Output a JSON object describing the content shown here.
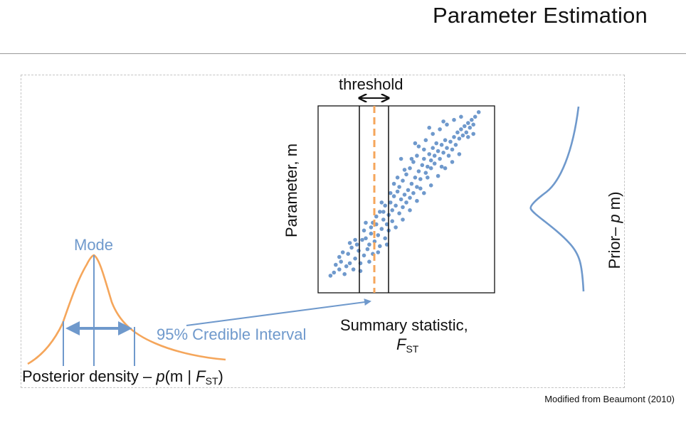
{
  "title": "Parameter Estimation",
  "labels": {
    "threshold": "threshold",
    "mode": "Mode",
    "credible_interval": "95% Credible Interval",
    "summary_line1": "Summary statistic,",
    "summary_f": "F",
    "summary_sub": "ST",
    "y_axis": "Parameter, m",
    "posterior_prefix": "Posterior density – ",
    "posterior_p": "p",
    "posterior_mid": "(m | ",
    "posterior_f": "F",
    "posterior_sub": "ST",
    "posterior_end": ")",
    "prior_prefix": "Prior– ",
    "prior_p": "p",
    "prior_end": " m)",
    "credit": "Modified from Beaumont (2010)"
  },
  "colors": {
    "points": "#6f99cc",
    "posterior_curve": "#f5a65b",
    "threshold_dash": "#f5a65b",
    "prior_curve": "#6f99cc",
    "arrows": "#6f99cc"
  },
  "chart_data": {
    "type": "scatter",
    "xlabel": "Summary statistic, FST",
    "ylabel": "Parameter, m",
    "points": [
      [
        0.07,
        0.11
      ],
      [
        0.09,
        0.13
      ],
      [
        0.12,
        0.15
      ],
      [
        0.1,
        0.18
      ],
      [
        0.15,
        0.12
      ],
      [
        0.13,
        0.2
      ],
      [
        0.16,
        0.17
      ],
      [
        0.12,
        0.23
      ],
      [
        0.18,
        0.19
      ],
      [
        0.2,
        0.15
      ],
      [
        0.17,
        0.25
      ],
      [
        0.21,
        0.22
      ],
      [
        0.19,
        0.29
      ],
      [
        0.23,
        0.27
      ],
      [
        0.24,
        0.19
      ],
      [
        0.26,
        0.24
      ],
      [
        0.22,
        0.31
      ],
      [
        0.25,
        0.34
      ],
      [
        0.28,
        0.28
      ],
      [
        0.27,
        0.35
      ],
      [
        0.29,
        0.31
      ],
      [
        0.3,
        0.38
      ],
      [
        0.31,
        0.25
      ],
      [
        0.32,
        0.33
      ],
      [
        0.3,
        0.42
      ],
      [
        0.33,
        0.44
      ],
      [
        0.34,
        0.37
      ],
      [
        0.35,
        0.3
      ],
      [
        0.33,
        0.49
      ],
      [
        0.36,
        0.41
      ],
      [
        0.37,
        0.47
      ],
      [
        0.35,
        0.52
      ],
      [
        0.38,
        0.35
      ],
      [
        0.39,
        0.44
      ],
      [
        0.38,
        0.56
      ],
      [
        0.4,
        0.5
      ],
      [
        0.41,
        0.58
      ],
      [
        0.4,
        0.4
      ],
      [
        0.42,
        0.53
      ],
      [
        0.43,
        0.62
      ],
      [
        0.42,
        0.46
      ],
      [
        0.44,
        0.56
      ],
      [
        0.45,
        0.65
      ],
      [
        0.43,
        0.7
      ],
      [
        0.46,
        0.51
      ],
      [
        0.47,
        0.6
      ],
      [
        0.46,
        0.68
      ],
      [
        0.48,
        0.55
      ],
      [
        0.49,
        0.63
      ],
      [
        0.48,
        0.72
      ],
      [
        0.5,
        0.58
      ],
      [
        0.51,
        0.66
      ],
      [
        0.5,
        0.76
      ],
      [
        0.52,
        0.61
      ],
      [
        0.53,
        0.7
      ],
      [
        0.52,
        0.8
      ],
      [
        0.54,
        0.64
      ],
      [
        0.55,
        0.74
      ],
      [
        0.54,
        0.84
      ],
      [
        0.56,
        0.68
      ],
      [
        0.57,
        0.78
      ],
      [
        0.56,
        0.88
      ],
      [
        0.58,
        0.73
      ],
      [
        0.59,
        0.82
      ],
      [
        0.58,
        0.67
      ],
      [
        0.6,
        0.86
      ],
      [
        0.61,
        0.77
      ],
      [
        0.6,
        0.92
      ],
      [
        0.62,
        0.81
      ],
      [
        0.63,
        0.89
      ],
      [
        0.62,
        0.74
      ],
      [
        0.64,
        0.85
      ],
      [
        0.65,
        0.93
      ],
      [
        0.64,
        0.8
      ],
      [
        0.66,
        0.88
      ],
      [
        0.67,
        0.96
      ],
      [
        0.66,
        0.83
      ],
      [
        0.68,
        0.91
      ],
      [
        0.69,
        0.86
      ],
      [
        0.7,
        0.95
      ],
      [
        0.71,
        0.9
      ],
      [
        0.72,
        0.98
      ],
      [
        0.7,
        0.81
      ],
      [
        0.73,
        0.93
      ],
      [
        0.74,
        0.88
      ],
      [
        0.75,
        0.97
      ],
      [
        0.76,
        0.92
      ],
      [
        0.77,
        1.0
      ],
      [
        0.78,
        0.95
      ],
      [
        0.79,
        1.03
      ],
      [
        0.8,
        0.99
      ],
      [
        0.81,
        1.05
      ],
      [
        0.82,
        1.01
      ],
      [
        0.83,
        1.07
      ],
      [
        0.84,
        1.03
      ],
      [
        0.85,
        1.09
      ],
      [
        0.86,
        1.06
      ],
      [
        0.87,
        1.11
      ],
      [
        0.88,
        1.08
      ],
      [
        0.89,
        1.13
      ],
      [
        0.14,
        0.26
      ],
      [
        0.21,
        0.34
      ],
      [
        0.26,
        0.4
      ],
      [
        0.31,
        0.45
      ],
      [
        0.36,
        0.58
      ],
      [
        0.41,
        0.64
      ],
      [
        0.45,
        0.74
      ],
      [
        0.49,
        0.79
      ],
      [
        0.53,
        0.86
      ],
      [
        0.57,
        0.94
      ],
      [
        0.61,
        0.98
      ],
      [
        0.65,
        1.02
      ],
      [
        0.69,
        1.05
      ],
      [
        0.73,
        1.08
      ],
      [
        0.77,
        1.11
      ],
      [
        0.81,
        1.13
      ],
      [
        0.24,
        0.14
      ],
      [
        0.29,
        0.2
      ],
      [
        0.34,
        0.26
      ],
      [
        0.39,
        0.31
      ],
      [
        0.44,
        0.42
      ],
      [
        0.48,
        0.47
      ],
      [
        0.52,
        0.53
      ],
      [
        0.56,
        0.59
      ],
      [
        0.6,
        0.64
      ],
      [
        0.64,
        0.69
      ],
      [
        0.68,
        0.75
      ],
      [
        0.72,
        0.8
      ],
      [
        0.76,
        0.84
      ],
      [
        0.8,
        0.89
      ],
      [
        0.18,
        0.32
      ],
      [
        0.27,
        0.45
      ],
      [
        0.37,
        0.52
      ],
      [
        0.47,
        0.86
      ],
      [
        0.55,
        0.96
      ],
      [
        0.63,
        1.06
      ],
      [
        0.71,
        1.1
      ],
      [
        0.85,
        1.0
      ],
      [
        0.88,
        1.02
      ],
      [
        0.91,
        1.16
      ]
    ]
  }
}
